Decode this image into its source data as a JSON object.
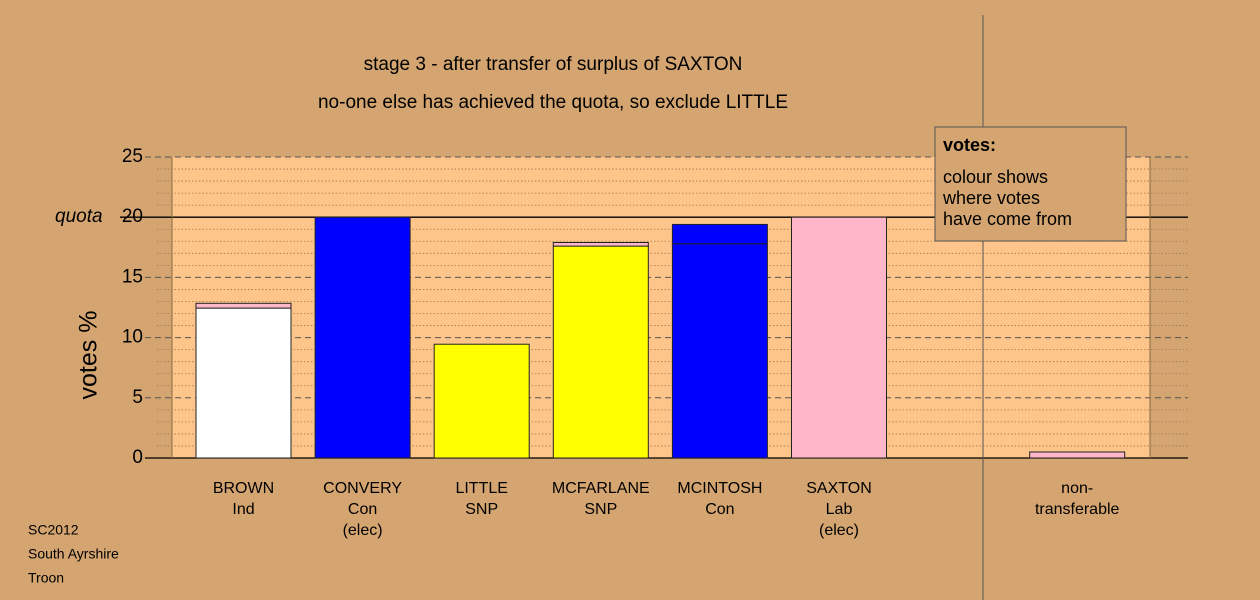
{
  "chart_data": {
    "type": "bar",
    "title": "stage 3 - after transfer of surplus of SAXTON",
    "subtitle": "no-one else has achieved the quota, so exclude LITTLE",
    "y_label": "votes %",
    "categories": [
      [
        "BROWN",
        "Ind"
      ],
      [
        "CONVERY",
        "Con",
        "(elec)"
      ],
      [
        "LITTLE",
        "SNP"
      ],
      [
        "MCFARLANE",
        "SNP"
      ],
      [
        "MCINTOSH",
        "Con"
      ],
      [
        "SAXTON",
        "Lab",
        "(elec)"
      ],
      null,
      [
        "non-",
        "transferable"
      ]
    ],
    "series": [
      {
        "colors": [
          "#ffffff",
          "#0000ff",
          "#ffff00",
          "#ffff00",
          "#0000ff",
          "#ffb6c8",
          null,
          null
        ],
        "values": [
          12.45,
          20,
          9.45,
          17.6,
          17.8,
          20,
          null,
          null
        ]
      },
      {
        "colors": [
          "#ffb6c8",
          null,
          null,
          "#ffb6c8",
          "#0000ff",
          null,
          null,
          "#ffb6c8"
        ],
        "values": [
          0.4,
          null,
          null,
          0.3,
          1.6,
          null,
          null,
          0.5
        ]
      }
    ],
    "ylim": [
      0,
      25
    ],
    "yticks": [
      0,
      5,
      10,
      15,
      20,
      25
    ],
    "minor_grid": [
      1,
      2,
      3,
      4,
      6,
      7,
      8,
      9,
      11,
      12,
      13,
      14,
      16,
      17,
      18,
      19,
      21,
      22,
      23,
      24
    ],
    "quota": {
      "value": 20,
      "label": "quota"
    },
    "legend": {
      "title": "votes:",
      "lines": [
        "colour shows",
        "where votes",
        "have come from"
      ]
    },
    "footer": [
      "SC2012",
      "South Ayrshire",
      "Troon"
    ]
  }
}
